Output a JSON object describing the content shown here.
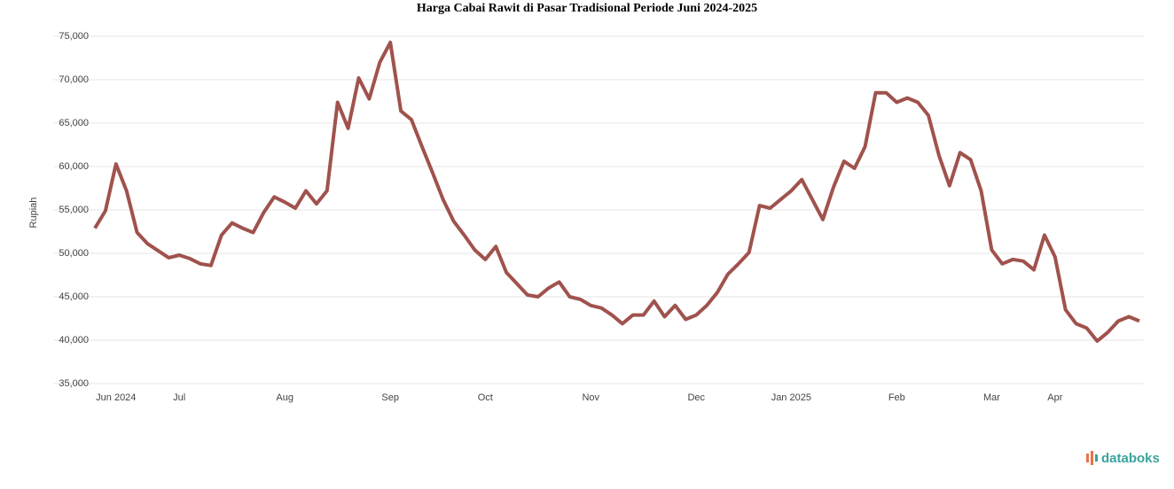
{
  "chart_data": {
    "type": "line",
    "title": "Harga Cabai Rawit di Pasar Tradisional Periode Juni 2024-2025",
    "y_label": "Rupiah",
    "categories": [
      null,
      null,
      "Jun 2024",
      null,
      null,
      null,
      null,
      null,
      "Jul",
      null,
      null,
      null,
      null,
      null,
      null,
      null,
      null,
      null,
      "Aug",
      null,
      null,
      null,
      null,
      null,
      null,
      null,
      null,
      null,
      "Sep",
      null,
      null,
      null,
      null,
      null,
      null,
      null,
      null,
      "Oct",
      null,
      null,
      null,
      null,
      null,
      null,
      null,
      null,
      null,
      "Nov",
      null,
      null,
      null,
      null,
      null,
      null,
      null,
      null,
      null,
      "Dec",
      null,
      null,
      null,
      null,
      null,
      null,
      null,
      null,
      "Jan 2025",
      null,
      null,
      null,
      null,
      null,
      null,
      null,
      null,
      null,
      "Feb",
      null,
      null,
      null,
      null,
      null,
      null,
      null,
      null,
      "Mar",
      null,
      null,
      null,
      null,
      null,
      "Apr",
      null,
      null,
      null,
      null,
      null,
      null,
      null,
      null
    ],
    "series": [
      {
        "name": "Cabai Rawit",
        "color": "#a0524d",
        "values": [
          52900,
          54900,
          60300,
          57200,
          52400,
          51100,
          50300,
          49500,
          49800,
          49400,
          48800,
          48600,
          52100,
          53500,
          52900,
          52400,
          54700,
          56500,
          55900,
          55200,
          57200,
          55700,
          57200,
          67400,
          64400,
          70200,
          67800,
          72000,
          74300,
          66400,
          65400,
          62300,
          59300,
          56200,
          53700,
          52100,
          50400,
          49300,
          50800,
          47800,
          46500,
          45200,
          45000,
          46000,
          46700,
          45000,
          44700,
          44000,
          43700,
          42900,
          41900,
          42900,
          42900,
          44500,
          42700,
          44000,
          42400,
          42900,
          44000,
          45500,
          47600,
          48800,
          50100,
          55500,
          55200,
          56200,
          57200,
          58500,
          56200,
          53900,
          57600,
          60600,
          59800,
          62300,
          68500,
          68500,
          67400,
          67900,
          67400,
          65900,
          61300,
          57800,
          61600,
          60800,
          57200,
          50400,
          48800,
          49300,
          49100,
          48100,
          52100,
          49600,
          43500,
          41900,
          41400,
          39900,
          40900,
          42200,
          42700,
          42200
        ]
      }
    ],
    "ylim": [
      35000,
      75000
    ],
    "yticks": [
      {
        "value": 35000,
        "label": "35,000"
      },
      {
        "value": 40000,
        "label": "40,000"
      },
      {
        "value": 45000,
        "label": "45,000"
      },
      {
        "value": 50000,
        "label": "50,000"
      },
      {
        "value": 55000,
        "label": "55,000"
      },
      {
        "value": 60000,
        "label": "60,000"
      },
      {
        "value": 65000,
        "label": "65,000"
      },
      {
        "value": 70000,
        "label": "70,000"
      },
      {
        "value": 75000,
        "label": "75,000"
      }
    ],
    "grid": true,
    "logo": "databoks"
  }
}
